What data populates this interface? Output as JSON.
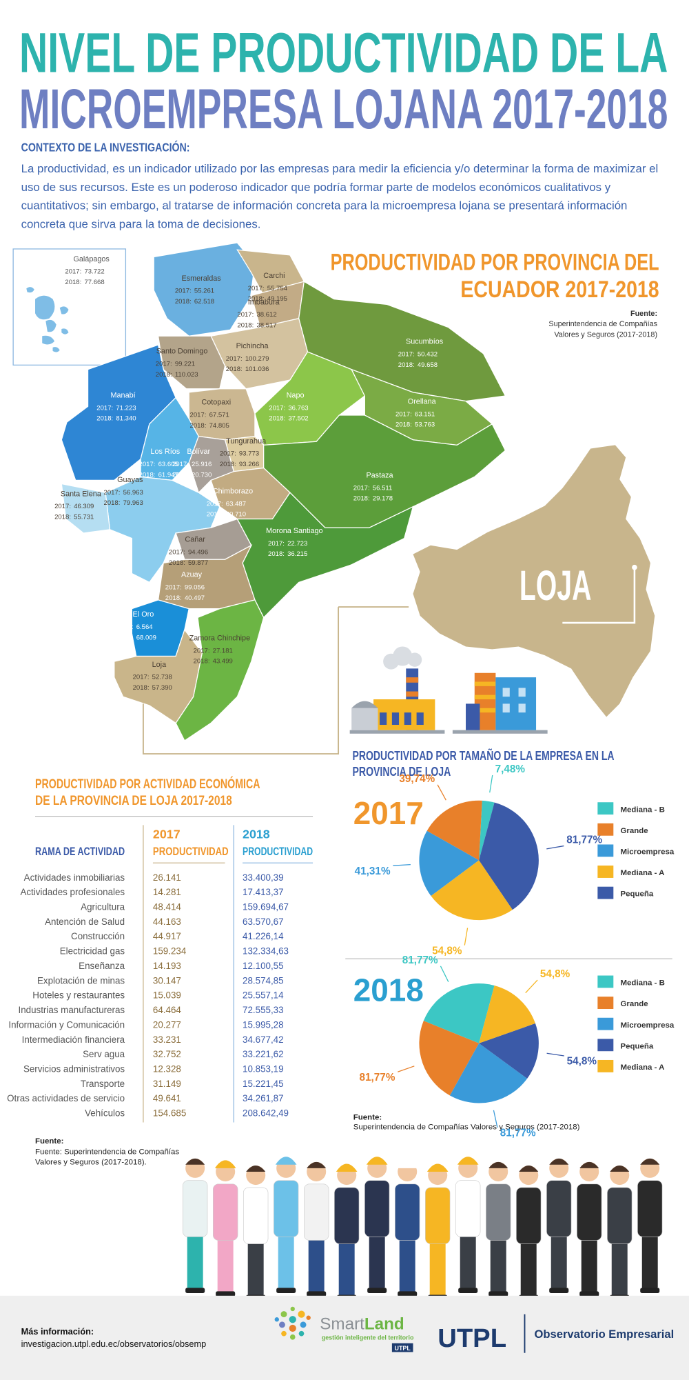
{
  "header": {
    "title_lines": [
      "NIVEL DE PRODUCTIVIDAD DE LA",
      "MICROEMPRESA LOJANA 2017-2018"
    ],
    "context_heading": "CONTEXTO DE LA INVESTIGACIÓN:",
    "context_text": "La productividad, es un indicador utilizado por las empresas para medir la eficiencia y/o determinar la forma de maximizar el uso de sus recursos. Este es un poderoso indicador que podría formar parte de modelos económicos cualitativos y cuantitativos; sin embargo, al tratarse de información concreta para la microempresa lojana se presentará información concreta que sirva para la toma de decisiones."
  },
  "map": {
    "title_lines": [
      "PRODUCTIVIDAD POR PROVINCIA DEL",
      "ECUADOR 2017-2018"
    ],
    "source_label": "Fuente:",
    "source_lines": [
      "Superintendencia de Compañías",
      "Valores y Seguros (2017-2018)"
    ],
    "year_labels": [
      "2017:",
      "2018:"
    ],
    "loja_label": "LOJA",
    "provinces": [
      {
        "name": "Galápagos",
        "v2017": "73.722",
        "v2018": "77.668"
      },
      {
        "name": "Esmeraldas",
        "v2017": "55.261",
        "v2018": "62.518"
      },
      {
        "name": "Carchi",
        "v2017": "55.754",
        "v2018": "49.195"
      },
      {
        "name": "Imbabura",
        "v2017": "38.612",
        "v2018": "38.517"
      },
      {
        "name": "Sucumbíos",
        "v2017": "50.432",
        "v2018": "49.658"
      },
      {
        "name": "Pichincha",
        "v2017": "100.279",
        "v2018": "101.036"
      },
      {
        "name": "Santo Domingo",
        "v2017": "99.221",
        "v2018": "110.023"
      },
      {
        "name": "Manabí",
        "v2017": "71.223",
        "v2018": "81.340"
      },
      {
        "name": "Napo",
        "v2017": "36.763",
        "v2018": "37.502"
      },
      {
        "name": "Orellana",
        "v2017": "63.151",
        "v2018": "53.763"
      },
      {
        "name": "Cotopaxi",
        "v2017": "67.571",
        "v2018": "74.805"
      },
      {
        "name": "Tungurahua",
        "v2017": "93.773",
        "v2018": "93.266"
      },
      {
        "name": "Los Ríos",
        "v2017": "63.605",
        "v2018": "61.947"
      },
      {
        "name": "Bolívar",
        "v2017": "25.916",
        "v2018": "20.730"
      },
      {
        "name": "Guayas",
        "v2017": "56.963",
        "v2018": "79.963"
      },
      {
        "name": "Santa Elena",
        "v2017": "46.309",
        "v2018": "55.731"
      },
      {
        "name": "Pastaza",
        "v2017": "56.511",
        "v2018": "29.178"
      },
      {
        "name": "Chimborazo",
        "v2017": "63.487",
        "v2018": "70.710"
      },
      {
        "name": "Cañar",
        "v2017": "94.496",
        "v2018": "59.877"
      },
      {
        "name": "Morona Santiago",
        "v2017": "22.723",
        "v2018": "36.215"
      },
      {
        "name": "Azuay",
        "v2017": "99.056",
        "v2018": "40.497"
      },
      {
        "name": "El Oro",
        "v2017": "6.564",
        "v2018": "68.009"
      },
      {
        "name": "Zamora Chinchipe",
        "v2017": "27.181",
        "v2018": "43.499"
      },
      {
        "name": "Loja",
        "v2017": "52.738",
        "v2018": "57.390"
      }
    ]
  },
  "pies_section": {
    "title_lines": [
      "PRODUCTIVIDAD POR TAMAÑO DE LA EMPRESA EN LA",
      "PROVINCIA DE LOJA"
    ],
    "source_label": "Fuente:",
    "source_text": "Superintendencia de Compañías Valores y Seguros (2017-2018)"
  },
  "chart_data": [
    {
      "type": "pie",
      "title": "2017",
      "categories": [
        "Mediana - B",
        "Grande",
        "Microempresa",
        "Mediana - A",
        "Pequeña"
      ],
      "values": [
        7.48,
        39.74,
        41.31,
        54.8,
        81.77
      ],
      "value_labels": [
        "7,48%",
        "39,74%",
        "41,31%",
        "54,8%",
        "81,77%"
      ],
      "colors": [
        "#3cc7c4",
        "#e8802a",
        "#3a9ad9",
        "#f6b623",
        "#3b5aa8"
      ]
    },
    {
      "type": "pie",
      "title": "2018",
      "categories": [
        "Mediana - B",
        "Grande",
        "Microempresa",
        "Pequeña",
        "Mediana - A"
      ],
      "values": [
        81.77,
        81.77,
        81.77,
        54.8,
        54.8
      ],
      "value_labels": [
        "81,77%",
        "81,77%",
        "81,77%",
        "54,8%",
        "54,8%"
      ],
      "colors": [
        "#3cc7c4",
        "#e8802a",
        "#3a9ad9",
        "#3b5aa8",
        "#f6b623"
      ]
    }
  ],
  "table": {
    "title_lines": [
      "PRODUCTIVIDAD POR  ACTIVIDAD ECONÓMICA",
      "DE LA  PROVINCIA DE LOJA 2017-2018"
    ],
    "columns": [
      {
        "label": "RAMA DE ACTIVIDAD"
      },
      {
        "year": "2017",
        "label": "PRODUCTIVIDAD"
      },
      {
        "year": "2018",
        "label": "PRODUCTIVIDAD"
      }
    ],
    "rows": [
      [
        "Actividades inmobiliarias",
        "26.141",
        "33.400,39"
      ],
      [
        "Actividades profesionales",
        "14.281",
        "17.413,37"
      ],
      [
        "Agricultura",
        "48.414",
        "159.694,67"
      ],
      [
        "Antención de Salud",
        "44.163",
        "63.570,67"
      ],
      [
        "Construcción",
        "44.917",
        "41.226,14"
      ],
      [
        "Electricidad  gas",
        "159.234",
        "132.334,63"
      ],
      [
        "Enseñanza",
        "14.193",
        "12.100,55"
      ],
      [
        "Explotación de minas",
        "30.147",
        "28.574,85"
      ],
      [
        "Hoteles y restaurantes",
        "15.039",
        "25.557,14"
      ],
      [
        "Industrias manufactureras",
        "64.464",
        "72.555,33"
      ],
      [
        "Información y Comunicación",
        "20.277",
        "15.995,28"
      ],
      [
        "Intermediación financiera",
        "33.231",
        "34.677,42"
      ],
      [
        "Serv agua",
        "32.752",
        "33.221,62"
      ],
      [
        "Servicios administrativos",
        "12.328",
        "10.853,19"
      ],
      [
        "Transporte",
        "31.149",
        "15.221,45"
      ],
      [
        "Otras actividades de servicio",
        "49.641",
        "34.261,87"
      ],
      [
        "Vehículos",
        "154.685",
        "208.642,49"
      ]
    ]
  },
  "table_source": {
    "label": "Fuente:",
    "lines": [
      "Fuente: Superintendencia de Compañías",
      "Valores y Seguros (2017-2018)."
    ]
  },
  "footer": {
    "more_label": "Más información:",
    "url": "investigacion.utpl.edu.ec/observatorios/obsemp",
    "smart": "Smart",
    "land": "Land",
    "tagline": "gestión inteligente del territorio",
    "badge": "UTPL",
    "utpl": "UTPL",
    "observatorio": "Observatorio Empresarial"
  }
}
